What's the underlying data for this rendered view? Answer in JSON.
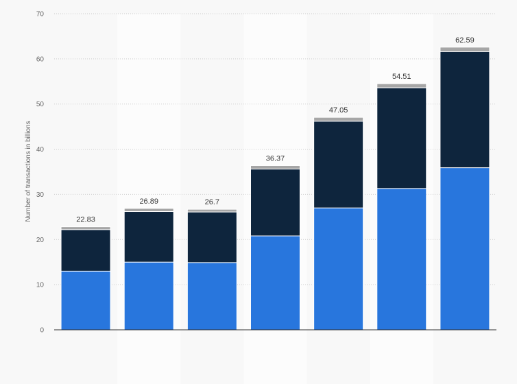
{
  "chart_data": {
    "type": "bar",
    "stacked": true,
    "categories": [
      "",
      "",
      "",
      "",
      "",
      "",
      ""
    ],
    "series": [
      {
        "values": [
          13.0,
          15.0,
          14.9,
          20.8,
          27.0,
          31.3,
          35.9
        ]
      },
      {
        "values": [
          9.2,
          11.2,
          11.2,
          14.8,
          19.2,
          22.3,
          25.7
        ]
      },
      {
        "values": [
          0.63,
          0.69,
          0.6,
          0.77,
          0.85,
          0.91,
          0.99
        ]
      }
    ],
    "totals": [
      "22.83",
      "26.89",
      "26.7",
      "36.37",
      "47.05",
      "54.51",
      "62.59"
    ],
    "ylabel": "Number of transactions in billions",
    "ylim": [
      0,
      70
    ],
    "yticks": [
      0,
      10,
      20,
      30,
      40,
      50,
      60,
      70
    ],
    "grid": true,
    "colors": {
      "series": [
        "#2876dd",
        "#0e253d",
        "#a6a6a6"
      ],
      "grid": "#cccccc",
      "axis": "#333333",
      "band": "#fcfcfc",
      "background": "#f8f8f8"
    }
  }
}
